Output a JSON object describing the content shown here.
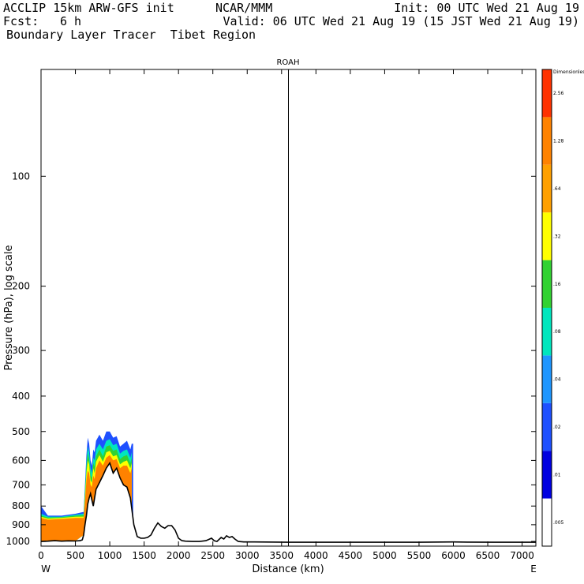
{
  "header": {
    "model": "ACCLIP 15km ARW-GFS init",
    "org": "NCAR/MMM",
    "init": "Init: 00 UTC Wed 21 Aug 19",
    "fcst_label": "Fcst:",
    "fcst_value": "6 h",
    "valid": "Valid: 06 UTC Wed 21 Aug 19 (15 JST Wed 21 Aug 19)",
    "field": "Boundary Layer Tracer  Tibet Region"
  },
  "chart_data": {
    "type": "cross-section",
    "title": "ROAH",
    "xlabel": "Distance (km)",
    "ylabel": "Pressure (hPa), log scale",
    "xlim": [
      0,
      7200
    ],
    "ylim": [
      1030,
      51
    ],
    "x_ticks": [
      0,
      500,
      1000,
      1500,
      2000,
      2500,
      3000,
      3500,
      4000,
      4500,
      5000,
      5500,
      6000,
      6500,
      7000
    ],
    "x_tick_labels": [
      "0",
      "500",
      "1000",
      "1500",
      "2000",
      "2500",
      "3000",
      "3500",
      "4000",
      "4500",
      "5000",
      "5500",
      "6000",
      "6500",
      "7000"
    ],
    "y_ticks": [
      100,
      200,
      300,
      400,
      500,
      600,
      700,
      800,
      900,
      1000
    ],
    "y_tick_labels": [
      "100",
      "200",
      "300",
      "400",
      "500",
      "600",
      "700",
      "800",
      "900",
      "1000"
    ],
    "left_end_label": "W",
    "right_end_label": "E",
    "vertical_line_km": 3600,
    "colorbar": {
      "colors": [
        "#ffffff",
        "#0000e0",
        "#1e50ff",
        "#1e96ff",
        "#00e6be",
        "#32d232",
        "#ffff00",
        "#ffa000",
        "#ff8200",
        "#ff3200"
      ],
      "labels": [
        ".005",
        ".01",
        ".02",
        ".04",
        ".08",
        ".16",
        ".32",
        ".64",
        "1.28",
        "2.56",
        "Dimensionless"
      ]
    },
    "terrain": {
      "x": [
        0,
        100,
        200,
        300,
        400,
        500,
        570,
        600,
        620,
        640,
        660,
        680,
        700,
        720,
        740,
        760,
        780,
        800,
        850,
        900,
        950,
        1000,
        1050,
        1100,
        1150,
        1200,
        1250,
        1300,
        1350,
        1400,
        1450,
        1500,
        1550,
        1600,
        1650,
        1700,
        1750,
        1800,
        1850,
        1900,
        1950,
        2000,
        2050,
        2100,
        2200,
        2300,
        2400,
        2480,
        2520,
        2560,
        2620,
        2660,
        2700,
        2740,
        2780,
        2820,
        2870,
        2950,
        3100,
        3600,
        4500,
        5500,
        6000,
        6200,
        6600,
        7000,
        7200
      ],
      "p": [
        1000,
        998,
        995,
        998,
        996,
        997,
        995,
        990,
        960,
        900,
        850,
        790,
        760,
        740,
        770,
        800,
        760,
        720,
        690,
        660,
        630,
        610,
        650,
        630,
        670,
        700,
        710,
        760,
        900,
        970,
        980,
        980,
        975,
        960,
        920,
        890,
        910,
        920,
        905,
        905,
        930,
        980,
        995,
        998,
        1000,
        1000,
        995,
        980,
        995,
        1000,
        975,
        985,
        965,
        975,
        970,
        985,
        1000,
        1003,
        1003,
        1005,
        1005,
        1005,
        1003,
        1004,
        1005,
        1005,
        1005
      ]
    },
    "tracer_layers": [
      {
        "name": "blue",
        "x": [
          0,
          100,
          300,
          500,
          620,
          640,
          660,
          680,
          700,
          720,
          740,
          760,
          780,
          800,
          850,
          900,
          950,
          1000,
          1050,
          1100,
          1150,
          1200,
          1250,
          1300,
          1320,
          1340
        ],
        "p_top": [
          800,
          850,
          850,
          840,
          830,
          700,
          580,
          520,
          540,
          600,
          620,
          560,
          570,
          530,
          510,
          530,
          500,
          500,
          520,
          515,
          550,
          540,
          530,
          560,
          540,
          540
        ]
      },
      {
        "name": "cyan",
        "x": [
          0,
          100,
          300,
          500,
          620,
          640,
          660,
          680,
          700,
          720,
          740,
          760,
          780,
          800,
          850,
          900,
          950,
          1000,
          1050,
          1100,
          1150,
          1200,
          1250,
          1300,
          1320
        ],
        "p_top": [
          840,
          855,
          855,
          845,
          840,
          720,
          610,
          550,
          570,
          630,
          650,
          590,
          600,
          560,
          540,
          560,
          530,
          525,
          545,
          540,
          575,
          565,
          560,
          590,
          570
        ]
      },
      {
        "name": "green",
        "x": [
          0,
          100,
          300,
          500,
          620,
          640,
          660,
          680,
          700,
          720,
          740,
          760,
          780,
          800,
          850,
          900,
          950,
          1000,
          1050,
          1100,
          1150,
          1200,
          1250,
          1300,
          1320
        ],
        "p_top": [
          850,
          860,
          858,
          850,
          848,
          740,
          630,
          575,
          595,
          660,
          670,
          610,
          625,
          585,
          560,
          585,
          550,
          545,
          565,
          560,
          595,
          585,
          580,
          610,
          590
        ]
      },
      {
        "name": "yellow",
        "x": [
          0,
          100,
          300,
          500,
          620,
          640,
          660,
          680,
          700,
          720,
          740,
          760,
          780,
          800,
          850,
          900,
          950,
          1000,
          1050,
          1100,
          1150,
          1200,
          1250,
          1300,
          1320
        ],
        "p_top": [
          856,
          866,
          862,
          856,
          855,
          760,
          650,
          600,
          615,
          680,
          690,
          630,
          650,
          605,
          580,
          605,
          570,
          565,
          585,
          580,
          615,
          605,
          600,
          630,
          610
        ]
      },
      {
        "name": "orange",
        "x": [
          0,
          100,
          300,
          500,
          620,
          640,
          660,
          680,
          700,
          720,
          740,
          760,
          780,
          800,
          850,
          900,
          950,
          1000,
          1050,
          1100,
          1150,
          1200,
          1250,
          1300,
          1320
        ],
        "p_top": [
          862,
          872,
          868,
          862,
          862,
          780,
          680,
          640,
          650,
          700,
          710,
          660,
          675,
          630,
          600,
          620,
          590,
          580,
          600,
          595,
          630,
          620,
          620,
          650,
          630
        ]
      }
    ]
  }
}
